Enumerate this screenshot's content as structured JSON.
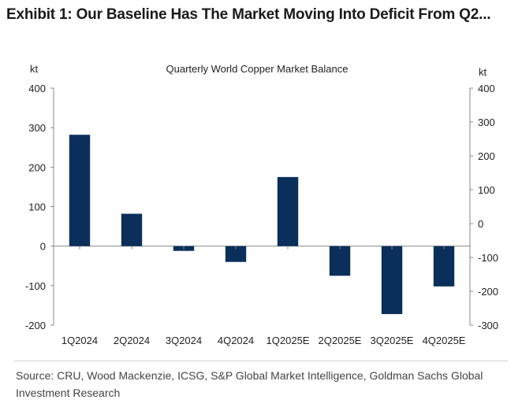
{
  "exhibit": {
    "title": "Exhibit 1: Our Baseline Has The Market Moving Into Deficit From Q2..."
  },
  "chart_data": {
    "type": "bar",
    "title": "Quarterly World Copper Market Balance",
    "unit_left": "kt",
    "unit_right": "kt",
    "categories": [
      "1Q2024",
      "2Q2024",
      "3Q2024",
      "4Q2024",
      "1Q2025E",
      "2Q2025E",
      "3Q2025E",
      "4Q2025E"
    ],
    "values": [
      282,
      82,
      -12,
      -40,
      175,
      -75,
      -172,
      -102
    ],
    "ylim": [
      -200,
      400
    ],
    "yticks": [
      -200,
      -100,
      0,
      100,
      200,
      300,
      400
    ],
    "ytick_labels": [
      "-200",
      "-100",
      "0",
      "100",
      "200",
      "300",
      "400"
    ],
    "ylim_right": [
      -300,
      400
    ],
    "yticks_right": [
      -300,
      -200,
      -100,
      0,
      100,
      200,
      300,
      400
    ],
    "ytick_labels_right": [
      "-300",
      "-200",
      "-100",
      "0",
      "100",
      "200",
      "300",
      "400"
    ],
    "bar_color": "#0b2f5b",
    "grid": false,
    "legend": "none"
  },
  "source": {
    "text": "Source: CRU, Wood Mackenzie, ICSG, S&P Global Market Intelligence, Goldman Sachs Global Investment Research"
  }
}
